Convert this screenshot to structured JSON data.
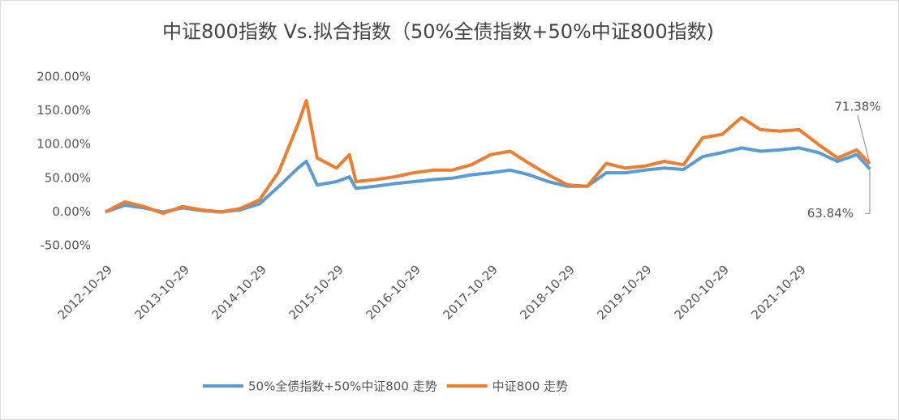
{
  "chart_data": {
    "type": "line",
    "title": "中证800指数 Vs.拟合指数（50%全债指数+50%中证800指数)",
    "x": [
      "2012-10-29",
      "2013-01-29",
      "2013-04-29",
      "2013-07-29",
      "2013-10-29",
      "2014-01-29",
      "2014-04-29",
      "2014-07-29",
      "2014-10-29",
      "2015-01-29",
      "2015-04-29",
      "2015-06-08",
      "2015-07-29",
      "2015-10-29",
      "2015-12-29",
      "2016-01-29",
      "2016-04-29",
      "2016-07-29",
      "2016-10-29",
      "2017-01-29",
      "2017-04-29",
      "2017-07-29",
      "2017-10-29",
      "2018-01-29",
      "2018-04-29",
      "2018-07-29",
      "2018-10-29",
      "2019-01-29",
      "2019-04-29",
      "2019-07-29",
      "2019-10-29",
      "2020-01-29",
      "2020-04-29",
      "2020-07-29",
      "2020-10-29",
      "2021-01-29",
      "2021-04-29",
      "2021-07-29",
      "2021-10-29",
      "2022-01-29",
      "2022-04-29",
      "2022-07-29",
      "2022-09-29"
    ],
    "xlim": [
      "2012-10-29",
      "2022-09-29"
    ],
    "xticks": [
      "2012-10-29",
      "2013-10-29",
      "2014-10-29",
      "2015-10-29",
      "2016-10-29",
      "2017-10-29",
      "2018-10-29",
      "2019-10-29",
      "2020-10-29",
      "2021-10-29"
    ],
    "ylim": [
      -50,
      200
    ],
    "yticks": [
      {
        "value": -50,
        "label": "-50.00%"
      },
      {
        "value": 0,
        "label": "0.00%"
      },
      {
        "value": 50,
        "label": "50.00%"
      },
      {
        "value": 100,
        "label": "100.00%"
      },
      {
        "value": 150,
        "label": "150.00%"
      },
      {
        "value": 200,
        "label": "200.00%"
      }
    ],
    "grid": false,
    "legend": "bottom",
    "series": [
      {
        "name": "50%全债指数+50%中证800 走势",
        "color": "#5b9bd5",
        "values": [
          0,
          10,
          6,
          0,
          6,
          2,
          0,
          3,
          12,
          38,
          65,
          75,
          40,
          45,
          52,
          35,
          38,
          42,
          45,
          48,
          50,
          55,
          58,
          62,
          55,
          45,
          38,
          38,
          58,
          58,
          62,
          65,
          63,
          82,
          88,
          95,
          90,
          92,
          95,
          88,
          75,
          85,
          63.84
        ],
        "value_labels": [
          null,
          null,
          null,
          null,
          null,
          null,
          null,
          null,
          null,
          null,
          null,
          null,
          null,
          null,
          null,
          null,
          null,
          null,
          null,
          null,
          null,
          null,
          null,
          null,
          null,
          null,
          null,
          null,
          null,
          null,
          null,
          null,
          null,
          null,
          null,
          null,
          null,
          null,
          null,
          null,
          null,
          null,
          "63.84%"
        ]
      },
      {
        "name": "中证800 走势",
        "color": "#ed7d31",
        "values": [
          0,
          15,
          8,
          -2,
          8,
          3,
          0,
          5,
          18,
          60,
          130,
          165,
          80,
          65,
          85,
          45,
          48,
          52,
          58,
          62,
          62,
          70,
          85,
          90,
          72,
          55,
          40,
          38,
          72,
          65,
          68,
          75,
          70,
          110,
          115,
          140,
          122,
          120,
          122,
          100,
          80,
          92,
          71.38
        ],
        "value_labels": [
          null,
          null,
          null,
          null,
          null,
          null,
          null,
          null,
          null,
          null,
          null,
          null,
          null,
          null,
          null,
          null,
          null,
          null,
          null,
          null,
          null,
          null,
          null,
          null,
          null,
          null,
          null,
          null,
          null,
          null,
          null,
          null,
          null,
          null,
          null,
          null,
          null,
          null,
          null,
          null,
          null,
          null,
          "71.38%"
        ]
      }
    ]
  }
}
